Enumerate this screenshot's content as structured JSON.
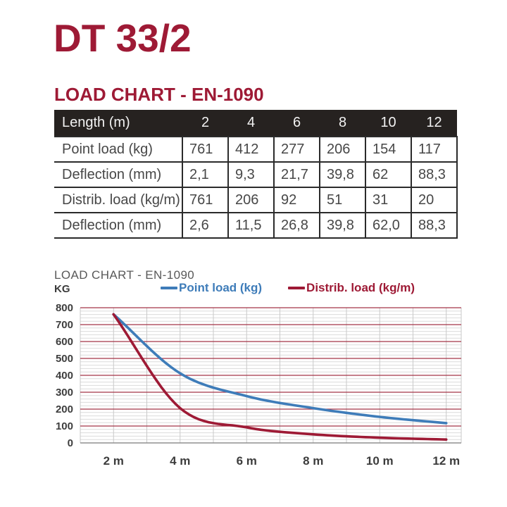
{
  "page": {
    "title": "DT 33/2",
    "section_heading": "LOAD CHART - EN-1090"
  },
  "table": {
    "header_label": "Length (m)",
    "columns": [
      "2",
      "4",
      "6",
      "8",
      "10",
      "12"
    ],
    "rows": [
      {
        "label": "Point load (kg)",
        "values": [
          "761",
          "412",
          "277",
          "206",
          "154",
          "117"
        ]
      },
      {
        "label": "Deflection (mm)",
        "values": [
          "2,1",
          "9,3",
          "21,7",
          "39,8",
          "62",
          "88,3"
        ]
      },
      {
        "label": "Distrib. load (kg/m)",
        "values": [
          "761",
          "206",
          "92",
          "51",
          "31",
          "20"
        ]
      },
      {
        "label": "Deflection (mm)",
        "values": [
          "2,6",
          "11,5",
          "26,8",
          "39,8",
          "62,0",
          "88,3"
        ]
      }
    ]
  },
  "chart": {
    "title": "LOAD CHART - EN-1090",
    "y_unit": "KG",
    "legend": [
      {
        "label": "Point load (kg)",
        "color": "#3e7cb9"
      },
      {
        "label": "Distrib. load (kg/m)",
        "color": "#9e1a35"
      }
    ]
  },
  "chart_data": {
    "type": "line",
    "title": "LOAD CHART - EN-1090",
    "ylabel": "KG",
    "x": [
      2,
      4,
      6,
      8,
      10,
      12
    ],
    "x_tick_labels": [
      "2 m",
      "4 m",
      "6 m",
      "8 m",
      "10 m",
      "12 m"
    ],
    "series": [
      {
        "name": "Point load (kg)",
        "color": "#3e7cb9",
        "values": [
          761,
          412,
          277,
          206,
          154,
          117
        ]
      },
      {
        "name": "Distrib. load (kg/m)",
        "color": "#9e1a35",
        "values": [
          761,
          206,
          92,
          51,
          31,
          20
        ]
      }
    ],
    "ylim": [
      0,
      800
    ],
    "y_ticks": [
      0,
      100,
      200,
      300,
      400,
      500,
      600,
      700,
      800
    ],
    "y_minor_step": 20,
    "xlim": [
      1,
      12.45
    ],
    "x_grid_step": 1,
    "grid": true,
    "legend_position": "top",
    "grid_major_color": "#a43548",
    "grid_minor_color": "#dcdcdc",
    "grid_vertical_color": "#c9c9c9",
    "zero_axis_color": "#8f8f8f"
  },
  "colors": {
    "accent": "#9e1a35",
    "table_header_bg": "#262220",
    "table_header_text": "#f2f2f2",
    "table_text": "#474747",
    "axis_text": "#3d3d3d",
    "chart_title_text": "#595959"
  }
}
